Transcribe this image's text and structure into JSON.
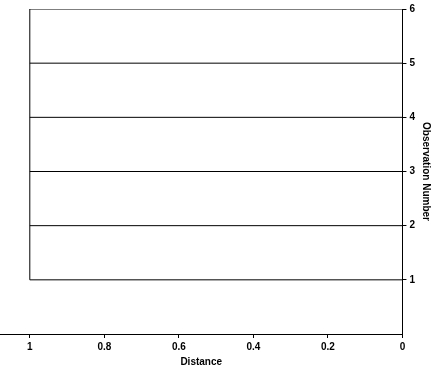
{
  "chart_data": {
    "type": "dendrogram",
    "x_label": "Distance",
    "y_label": "Observation Number",
    "leaves": [
      1,
      2,
      3,
      4,
      5,
      6
    ],
    "links": [
      {
        "leaves": [
          1,
          2,
          3,
          4,
          5,
          6
        ],
        "distance": 1
      }
    ],
    "xlim": [
      1.08,
      0
    ],
    "xticks": [
      1,
      0.8,
      0.6,
      0.4,
      0.2,
      0
    ],
    "ylim": [
      0,
      6
    ],
    "yticks": [
      1,
      2,
      3,
      4,
      5,
      6
    ],
    "color": "#000000",
    "grid": false
  }
}
